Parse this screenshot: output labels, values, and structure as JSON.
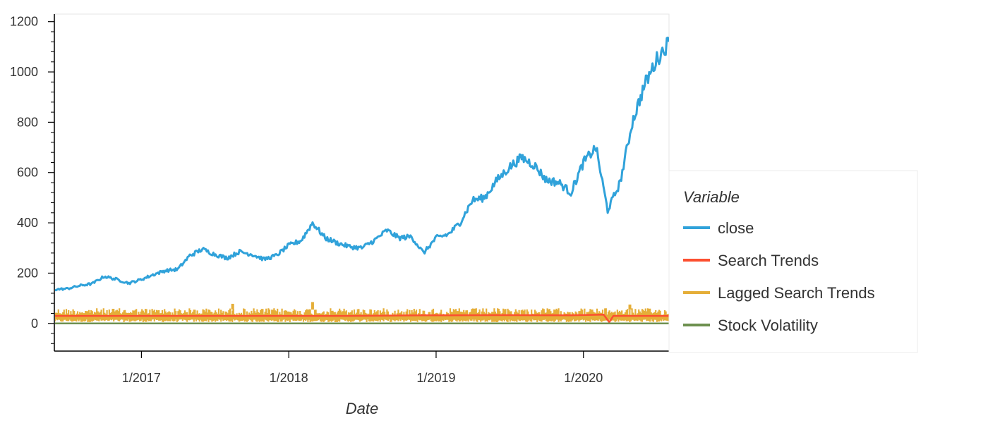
{
  "chart_data": {
    "type": "line",
    "title": "",
    "xlabel": "Date",
    "ylabel": "",
    "x_range": [
      "2016-06-01",
      "2020-07-31"
    ],
    "ylim": [
      -110,
      1230
    ],
    "y_ticks": [
      0,
      200,
      400,
      600,
      800,
      1000,
      1200
    ],
    "x_ticks": [
      {
        "date": "2017-01-01",
        "label": "1/2017"
      },
      {
        "date": "2018-01-01",
        "label": "1/2018"
      },
      {
        "date": "2019-01-01",
        "label": "1/2019"
      },
      {
        "date": "2020-01-01",
        "label": "1/2020"
      }
    ],
    "grid": false,
    "legend": {
      "title": "Variable",
      "position": "right"
    },
    "series": [
      {
        "name": "close",
        "color": "#30a2da",
        "points": [
          [
            "2016-06-01",
            135
          ],
          [
            "2016-07-01",
            138
          ],
          [
            "2016-08-01",
            150
          ],
          [
            "2016-09-01",
            158
          ],
          [
            "2016-10-01",
            187
          ],
          [
            "2016-11-01",
            175
          ],
          [
            "2016-12-01",
            160
          ],
          [
            "2017-01-01",
            175
          ],
          [
            "2017-02-01",
            195
          ],
          [
            "2017-03-01",
            210
          ],
          [
            "2017-04-01",
            215
          ],
          [
            "2017-05-01",
            270
          ],
          [
            "2017-06-01",
            295
          ],
          [
            "2017-07-01",
            275
          ],
          [
            "2017-08-01",
            260
          ],
          [
            "2017-09-01",
            285
          ],
          [
            "2017-10-01",
            275
          ],
          [
            "2017-11-01",
            255
          ],
          [
            "2017-12-01",
            270
          ],
          [
            "2018-01-01",
            310
          ],
          [
            "2018-02-01",
            330
          ],
          [
            "2018-03-01",
            400
          ],
          [
            "2018-04-01",
            340
          ],
          [
            "2018-05-01",
            320
          ],
          [
            "2018-06-01",
            305
          ],
          [
            "2018-07-01",
            300
          ],
          [
            "2018-08-01",
            330
          ],
          [
            "2018-09-01",
            370
          ],
          [
            "2018-10-01",
            340
          ],
          [
            "2018-11-01",
            345
          ],
          [
            "2018-12-01",
            280
          ],
          [
            "2019-01-01",
            340
          ],
          [
            "2019-02-01",
            355
          ],
          [
            "2019-03-01",
            400
          ],
          [
            "2019-04-01",
            490
          ],
          [
            "2019-05-01",
            500
          ],
          [
            "2019-06-01",
            570
          ],
          [
            "2019-07-01",
            620
          ],
          [
            "2019-08-01",
            660
          ],
          [
            "2019-09-01",
            630
          ],
          [
            "2019-10-01",
            570
          ],
          [
            "2019-11-01",
            560
          ],
          [
            "2019-12-01",
            520
          ],
          [
            "2020-01-01",
            640
          ],
          [
            "2020-02-01",
            700
          ],
          [
            "2020-03-01",
            450
          ],
          [
            "2020-04-01",
            560
          ],
          [
            "2020-05-01",
            800
          ],
          [
            "2020-06-01",
            950
          ],
          [
            "2020-07-01",
            1050
          ],
          [
            "2020-07-31",
            1120
          ]
        ]
      },
      {
        "name": "Search Trends",
        "color": "#fc4f30",
        "points": [
          [
            "2016-06-01",
            30
          ],
          [
            "2016-12-01",
            30
          ],
          [
            "2017-06-01",
            30
          ],
          [
            "2017-12-01",
            30
          ],
          [
            "2018-06-01",
            30
          ],
          [
            "2018-12-01",
            32
          ],
          [
            "2019-06-01",
            33
          ],
          [
            "2019-12-01",
            32
          ],
          [
            "2020-02-20",
            35
          ],
          [
            "2020-03-05",
            5
          ],
          [
            "2020-03-15",
            30
          ],
          [
            "2020-07-31",
            30
          ]
        ]
      },
      {
        "name": "Lagged Search Trends",
        "color": "#e5ae38",
        "band": {
          "min": 5,
          "max": 55,
          "spikes": [
            [
              "2017-08-15",
              78
            ],
            [
              "2018-03-01",
              85
            ],
            [
              "2020-04-25",
              75
            ]
          ]
        }
      },
      {
        "name": "Stock Volatility",
        "color": "#6d904f",
        "points": [
          [
            "2016-06-01",
            0
          ],
          [
            "2020-07-31",
            0
          ]
        ]
      }
    ]
  }
}
